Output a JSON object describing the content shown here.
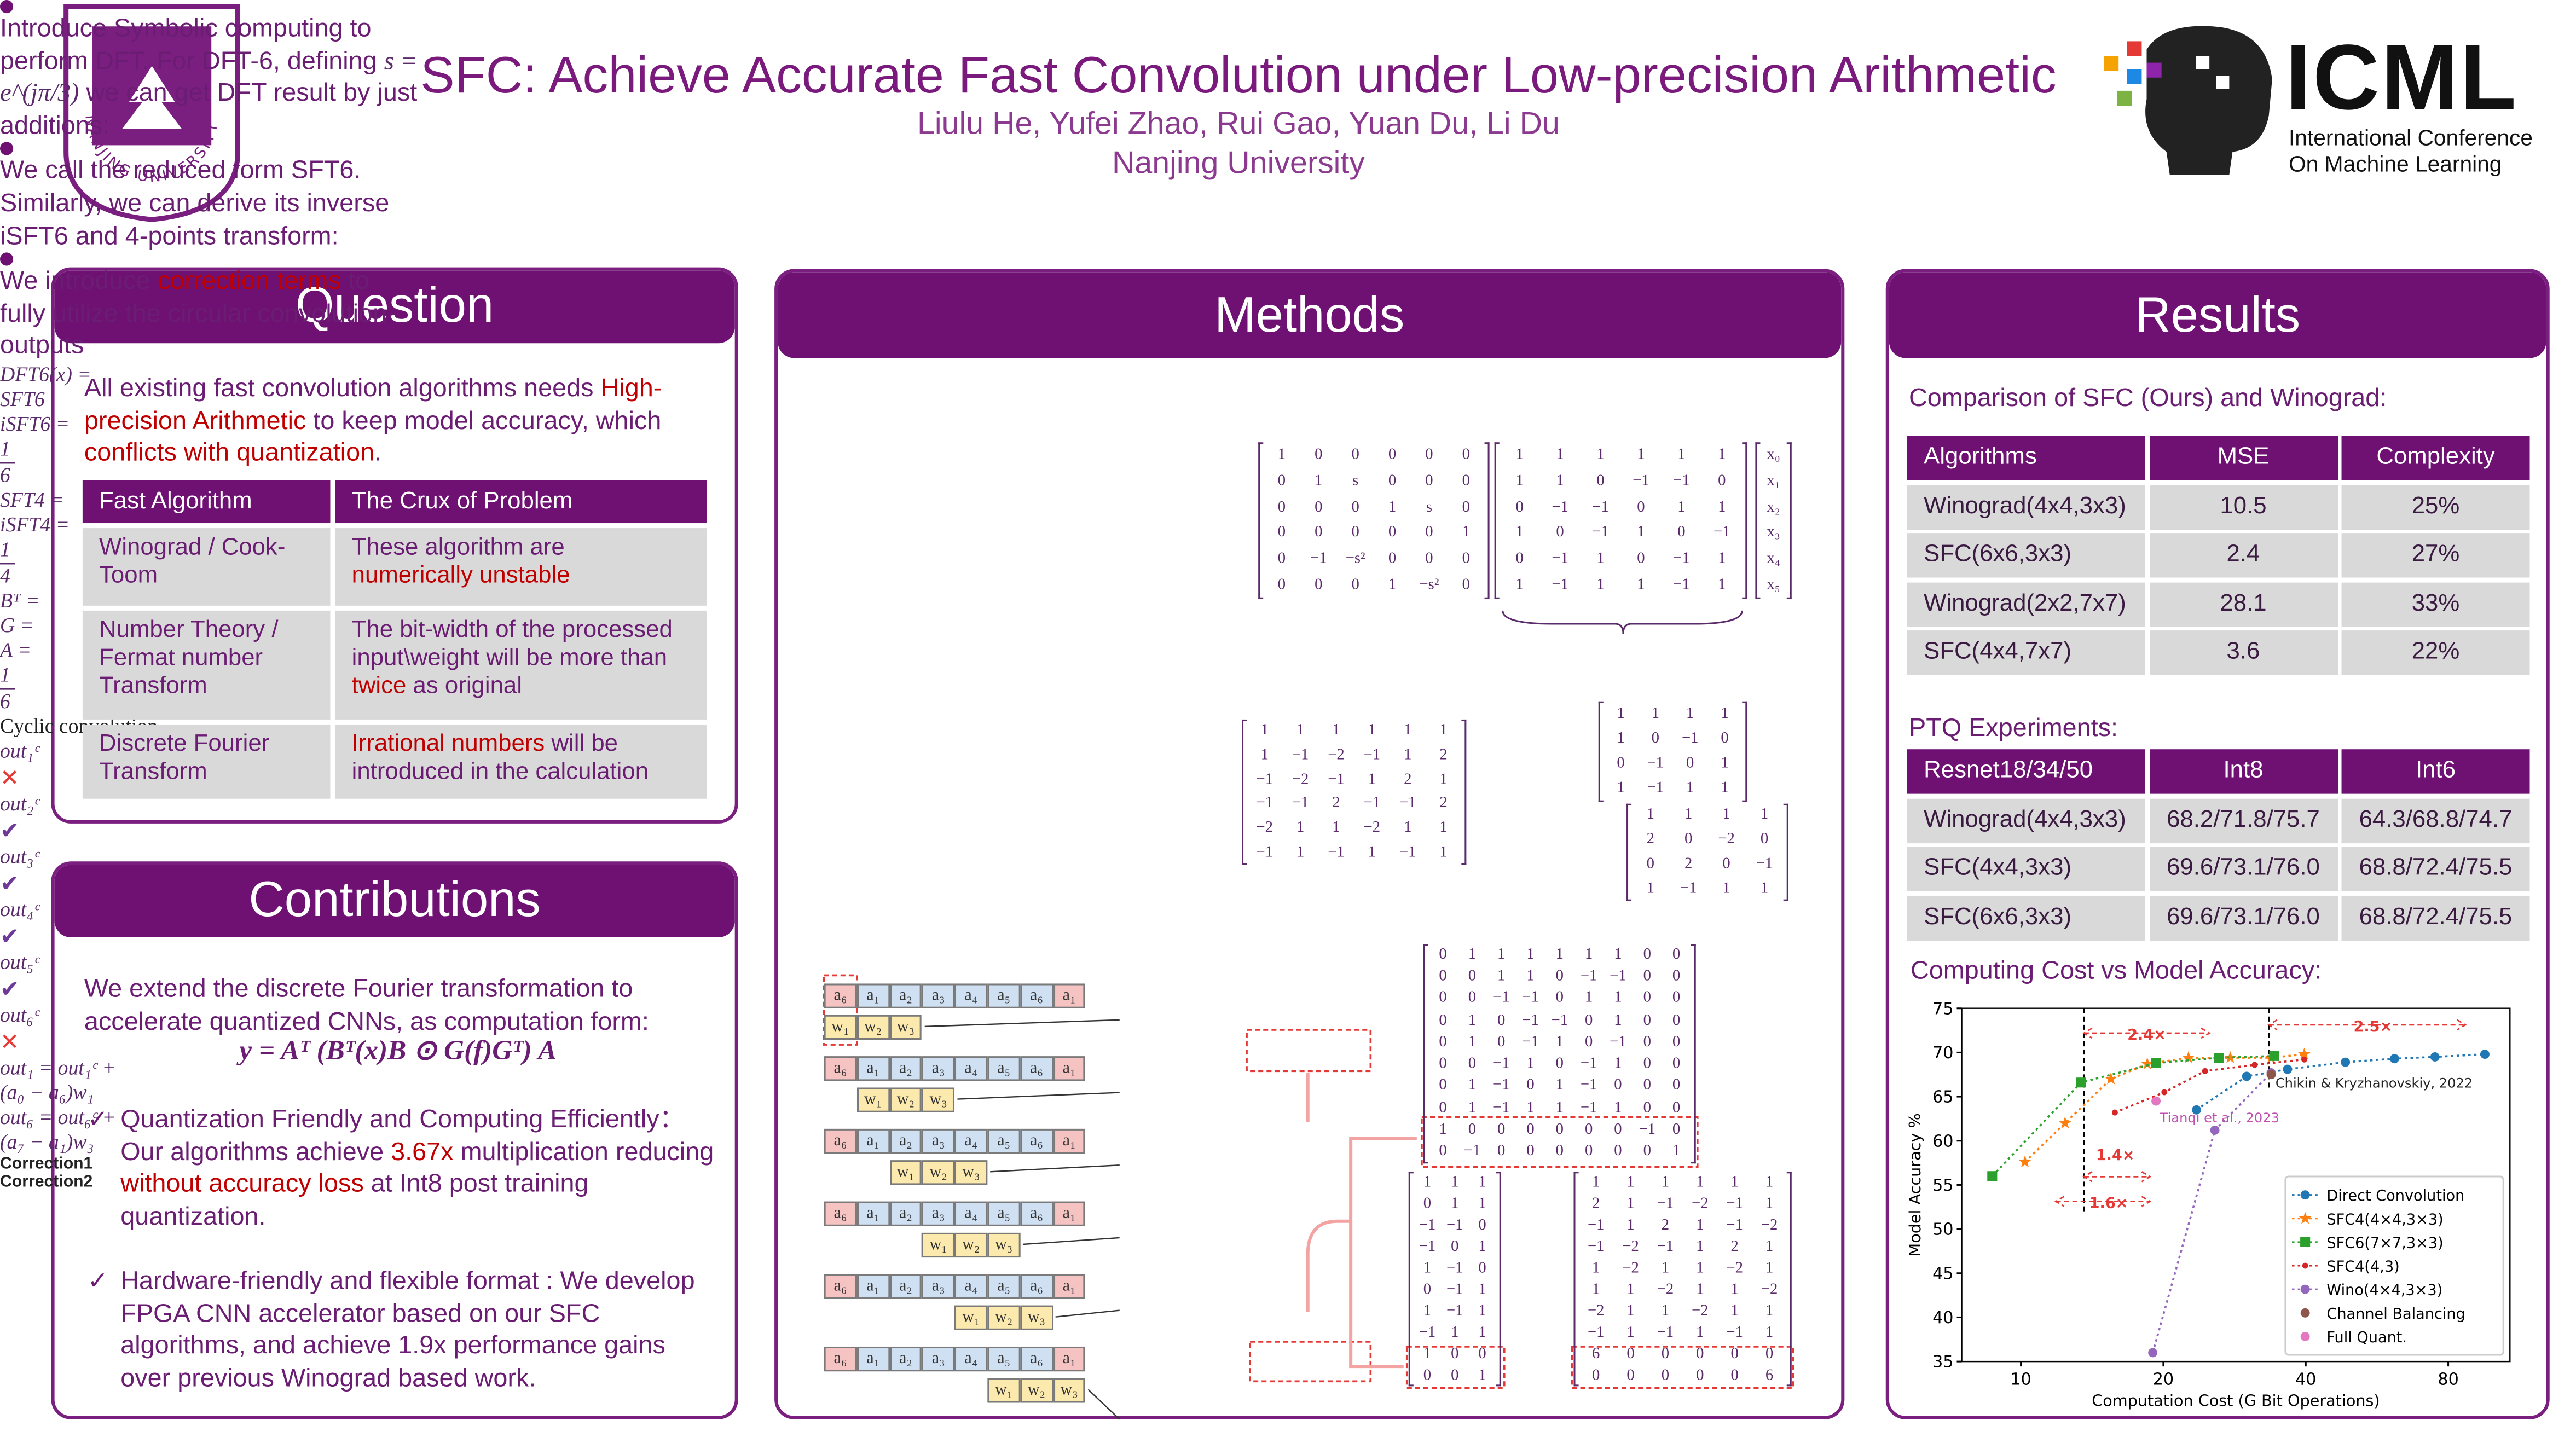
{
  "header": {
    "title": "SFC: Achieve Accurate Fast Convolution under Low-precision Arithmetic",
    "authors": "Liulu He, Yufei Zhao, Rui Gao, Yuan Du, Li Du",
    "affiliation": "Nanjing University",
    "nju_logo": {
      "name": "NANJING UNIVERSITY",
      "year": "1902"
    },
    "icml_logo": {
      "name": "ICML",
      "line1": "International Conference",
      "line2": "On Machine Learning"
    }
  },
  "question": {
    "heading": "Question",
    "intro": [
      "All existing fast convolution algorithms needs ",
      {
        "text": "High-precision Arithmetic",
        "red": true
      },
      " to keep model accuracy, which ",
      {
        "text": "conflicts with quantization",
        "red": true
      },
      "."
    ],
    "table": {
      "header": [
        "Fast Algorithm",
        "The Crux of Problem"
      ],
      "rows": [
        [
          [
            "Winograd / Cook-Toom"
          ],
          [
            "These algorithm are ",
            {
              "text": "numerically unstable",
              "red": true
            }
          ]
        ],
        [
          [
            "Number Theory / Fermat number Transform"
          ],
          [
            "The bit-width of the processed input\\weight will be more than ",
            {
              "text": "twice",
              "red": true
            },
            " as original"
          ]
        ],
        [
          [
            "Discrete Fourier Transform"
          ],
          [
            {
              "text": "Irrational numbers",
              "red": true
            },
            " will be introduced in the calculation"
          ]
        ]
      ]
    }
  },
  "contributions": {
    "heading": "Contributions",
    "intro": "We extend the discrete Fourier transformation to accelerate quantized CNNs, as computation form:",
    "formula": "y = Aᵀ (Bᵀ(x)B ⊙ G(f)Gᵀ) A",
    "bullets": [
      [
        "Quantization Friendly and Computing Efficiently：Our algorithms achieve ",
        {
          "text": "3.67x",
          "red": true
        },
        " multiplication reducing ",
        {
          "text": "without accuracy loss",
          "red": true
        },
        " at Int8 post training quantization."
      ],
      [
        "Hardware-friendly and flexible format : We develop FPGA CNN accelerator based on our SFC algorithms, and achieve 1.9x performance gains over previous Winograd based work."
      ]
    ]
  },
  "methods": {
    "heading": "Methods",
    "bullets": [
      [
        "Introduce Symbolic computing to perform DFT. For DFT-6, defining ",
        {
          "text": "s = e^(jπ/3)",
          "math": true
        },
        " we can get DFT result by just additions:"
      ],
      [
        "We call the reduced form SFT6. Similarly, we can derive its inverse iSFT6 and 4-points transform:"
      ],
      [
        "We introduce ",
        {
          "text": "correction terms",
          "red": true
        },
        " to fully utilize the circular convolution outputs"
      ]
    ],
    "dft6": {
      "label": "DFT6(x) =",
      "left": [
        [
          "1",
          "0",
          "0",
          "0",
          "0",
          "0"
        ],
        [
          "0",
          "1",
          "s",
          "0",
          "0",
          "0"
        ],
        [
          "0",
          "0",
          "0",
          "1",
          "s",
          "0"
        ],
        [
          "0",
          "0",
          "0",
          "0",
          "0",
          "1"
        ],
        [
          "0",
          "−1",
          "−s²",
          "0",
          "0",
          "0"
        ],
        [
          "0",
          "0",
          "0",
          "1",
          "−s²",
          "0"
        ]
      ],
      "sft6": [
        [
          "1",
          "1",
          "1",
          "1",
          "1",
          "1"
        ],
        [
          "1",
          "1",
          "0",
          "−1",
          "−1",
          "0"
        ],
        [
          "0",
          "−1",
          "−1",
          "0",
          "1",
          "1"
        ],
        [
          "1",
          "0",
          "−1",
          "1",
          "0",
          "−1"
        ],
        [
          "0",
          "−1",
          "1",
          "0",
          "−1",
          "1"
        ],
        [
          "1",
          "−1",
          "1",
          "1",
          "−1",
          "1"
        ]
      ],
      "x": [
        [
          "x₀"
        ],
        [
          "x₁"
        ],
        [
          "x₂"
        ],
        [
          "x₃"
        ],
        [
          "x₄"
        ],
        [
          "x₅"
        ]
      ],
      "brace_label": "SFT6"
    },
    "isft6": {
      "label": "iSFT6 =",
      "num": "1",
      "den": "6",
      "matrix": [
        [
          "1",
          "1",
          "1",
          "1",
          "1",
          "1"
        ],
        [
          "1",
          "−1",
          "−2",
          "−1",
          "1",
          "2"
        ],
        [
          "−1",
          "−2",
          "−1",
          "1",
          "2",
          "1"
        ],
        [
          "−1",
          "−1",
          "2",
          "−1",
          "−1",
          "2"
        ],
        [
          "−2",
          "1",
          "1",
          "−2",
          "1",
          "1"
        ],
        [
          "−1",
          "1",
          "−1",
          "1",
          "−1",
          "1"
        ]
      ]
    },
    "sft4": {
      "label": "SFT4 =",
      "matrix": [
        [
          "1",
          "1",
          "1",
          "1"
        ],
        [
          "1",
          "0",
          "−1",
          "0"
        ],
        [
          "0",
          "−1",
          "0",
          "1"
        ],
        [
          "1",
          "−1",
          "1",
          "1"
        ]
      ]
    },
    "isft4": {
      "label": "iSFT4 =",
      "num": "1",
      "den": "4",
      "matrix": [
        [
          "1",
          "1",
          "1",
          "1"
        ],
        [
          "2",
          "0",
          "−2",
          "0"
        ],
        [
          "0",
          "2",
          "0",
          "−1"
        ],
        [
          "1",
          "−1",
          "1",
          "1"
        ]
      ]
    },
    "cyclic": {
      "title": "Cyclic convolution",
      "a_cells": [
        "a₆",
        "a₁",
        "a₂",
        "a₃",
        "a₄",
        "a₅",
        "a₆",
        "a₁"
      ],
      "w_cells": [
        "w₁",
        "w₂",
        "w₃"
      ],
      "outs": [
        {
          "text": "out₁ᶜ",
          "ok": false
        },
        {
          "text": "out₂ᶜ",
          "ok": true
        },
        {
          "text": "out₃ᶜ",
          "ok": true
        },
        {
          "text": "out₄ᶜ",
          "ok": true
        },
        {
          "text": "out₅ᶜ",
          "ok": true
        },
        {
          "text": "out₆ᶜ",
          "ok": false
        }
      ],
      "eq1": "out₁ = out₁ᶜ +",
      "corr1": "(a₀ − a₆)w₁",
      "label1": "Correction1",
      "eq2": "out₆ = out₆ᶜ +",
      "corr2": "(a₇ − a₁)w₃",
      "label2": "Correction2"
    },
    "bt": {
      "label": "Bᵀ =",
      "matrix": [
        [
          "0",
          "1",
          "1",
          "1",
          "1",
          "1",
          "1",
          "0",
          "0"
        ],
        [
          "0",
          "0",
          "1",
          "1",
          "0",
          "−1",
          "−1",
          "0",
          "0"
        ],
        [
          "0",
          "0",
          "−1",
          "−1",
          "0",
          "1",
          "1",
          "0",
          "0"
        ],
        [
          "0",
          "1",
          "0",
          "−1",
          "−1",
          "0",
          "1",
          "0",
          "0"
        ],
        [
          "0",
          "1",
          "0",
          "−1",
          "1",
          "0",
          "−1",
          "0",
          "0"
        ],
        [
          "0",
          "0",
          "−1",
          "1",
          "0",
          "−1",
          "1",
          "0",
          "0"
        ],
        [
          "0",
          "1",
          "−1",
          "0",
          "1",
          "−1",
          "0",
          "0",
          "0"
        ],
        [
          "0",
          "1",
          "−1",
          "1",
          "1",
          "−1",
          "1",
          "0",
          "0"
        ],
        [
          "1",
          "0",
          "0",
          "0",
          "0",
          "0",
          "0",
          "−1",
          "0"
        ],
        [
          "0",
          "−1",
          "0",
          "0",
          "0",
          "0",
          "0",
          "0",
          "1"
        ]
      ]
    },
    "g": {
      "label": "G =",
      "matrix": [
        [
          "1",
          "1",
          "1"
        ],
        [
          "0",
          "1",
          "1"
        ],
        [
          "−1",
          "−1",
          "0"
        ],
        [
          "−1",
          "0",
          "1"
        ],
        [
          "1",
          "−1",
          "0"
        ],
        [
          "0",
          "−1",
          "1"
        ],
        [
          "1",
          "−1",
          "1"
        ],
        [
          "−1",
          "1",
          "1"
        ],
        [
          "1",
          "0",
          "0"
        ],
        [
          "0",
          "0",
          "1"
        ]
      ]
    },
    "a": {
      "label": "A =",
      "num": "1",
      "den": "6",
      "matrix": [
        [
          "1",
          "1",
          "1",
          "1",
          "1",
          "1"
        ],
        [
          "2",
          "1",
          "−1",
          "−2",
          "−1",
          "1"
        ],
        [
          "−1",
          "1",
          "2",
          "1",
          "−1",
          "−2"
        ],
        [
          "−1",
          "−2",
          "−1",
          "1",
          "2",
          "1"
        ],
        [
          "1",
          "−2",
          "1",
          "1",
          "−2",
          "1"
        ],
        [
          "1",
          "1",
          "−2",
          "1",
          "1",
          "−2"
        ],
        [
          "−2",
          "1",
          "1",
          "−2",
          "1",
          "1"
        ],
        [
          "−1",
          "1",
          "−1",
          "1",
          "−1",
          "1"
        ],
        [
          "6",
          "0",
          "0",
          "0",
          "0",
          "0"
        ],
        [
          "0",
          "0",
          "0",
          "0",
          "0",
          "6"
        ]
      ]
    }
  },
  "results": {
    "heading": "Results",
    "comparison_title": "Comparison of SFC (Ours) and Winograd:",
    "comparison": {
      "header": [
        "Algorithms",
        "MSE",
        "Complexity"
      ],
      "rows": [
        [
          "Winograd(4x4,3x3)",
          "10.5",
          "25%"
        ],
        [
          "SFC(6x6,3x3)",
          "2.4",
          "27%"
        ],
        [
          "Winograd(2x2,7x7)",
          "28.1",
          "33%"
        ],
        [
          "SFC(4x4,7x7)",
          "3.6",
          "22%"
        ]
      ]
    },
    "ptq_title": "PTQ Experiments:",
    "ptq": {
      "header": [
        "Resnet18/34/50",
        "Int8",
        "Int6"
      ],
      "rows": [
        [
          "Winograd(4x4,3x3)",
          "68.2/71.8/75.7",
          "64.3/68.8/74.7"
        ],
        [
          "SFC(4x4,3x3)",
          "69.6/73.1/76.0",
          "68.8/72.4/75.5"
        ],
        [
          "SFC(6x6,3x3)",
          "69.6/73.1/76.0",
          "68.8/72.4/75.5"
        ]
      ]
    },
    "chart_title": "Computing Cost vs Model Accuracy:"
  },
  "chart_data": {
    "type": "line",
    "x_label": "Computation Cost (G Bit Operations)",
    "y_label": "Model Accuracy %",
    "log_x": true,
    "xlim": [
      7.5,
      108
    ],
    "xticks": [
      10,
      20,
      40,
      80
    ],
    "ylim": [
      35,
      75
    ],
    "yticks": [
      35,
      40,
      45,
      50,
      55,
      60,
      65,
      70,
      75
    ],
    "grid": false,
    "legend": "lower right",
    "series": [
      {
        "name": "Direct Convolution",
        "color": "#1f77b4",
        "marker": "o",
        "line": "dotted",
        "x": [
          23.5,
          30,
          36.6,
          48.5,
          61.6,
          75,
          95.6
        ],
        "values": [
          63.5,
          67.3,
          68.1,
          68.9,
          69.3,
          69.5,
          69.8
        ]
      },
      {
        "name": "SFC4(4×4,3×3)",
        "color": "#ff7f0e",
        "marker": "*",
        "line": "dotted",
        "x": [
          10.2,
          12.4,
          15.5,
          18.5,
          22.6,
          27.7,
          33.8,
          39.7
        ],
        "values": [
          57.6,
          62,
          67,
          68.7,
          69.4,
          69.4,
          69.4,
          69.8
        ]
      },
      {
        "name": "SFC6(7×7,3×3)",
        "color": "#2ca02c",
        "marker": "s",
        "line": "dotted",
        "x": [
          8.7,
          13.4,
          19.3,
          26.2,
          34.3
        ],
        "values": [
          56,
          66.6,
          68.8,
          69.4,
          69.6
        ]
      },
      {
        "name": "SFC4(4,3)",
        "color": "#d62728",
        "marker": ".",
        "line": "dotted",
        "x": [
          15.8,
          20.1,
          24.5,
          31.2,
          39.7
        ],
        "values": [
          63.2,
          65.5,
          67.9,
          68.6,
          69.2
        ]
      },
      {
        "name": "Wino(4×4,3×3)",
        "color": "#9467bd",
        "marker": "o",
        "line": "dotted",
        "x": [
          19.0,
          25.7,
          33.8
        ],
        "values": [
          36,
          61.2,
          67.7
        ]
      },
      {
        "name": "Channel Balancing",
        "color": "#8c564b",
        "marker": "o",
        "line": "none",
        "x": [
          33.8
        ],
        "values": [
          67.5
        ]
      },
      {
        "name": "Full Quant.",
        "color": "#e377c2",
        "marker": "o",
        "line": "none",
        "x": [
          19.3
        ],
        "values": [
          64.5
        ]
      }
    ],
    "annotations": [
      "2.4×",
      "2.5×",
      "1.4×",
      "1.6×",
      "Chikin & Kryzhanovskiy, 2022",
      "Tianqi et al., 2023"
    ]
  }
}
